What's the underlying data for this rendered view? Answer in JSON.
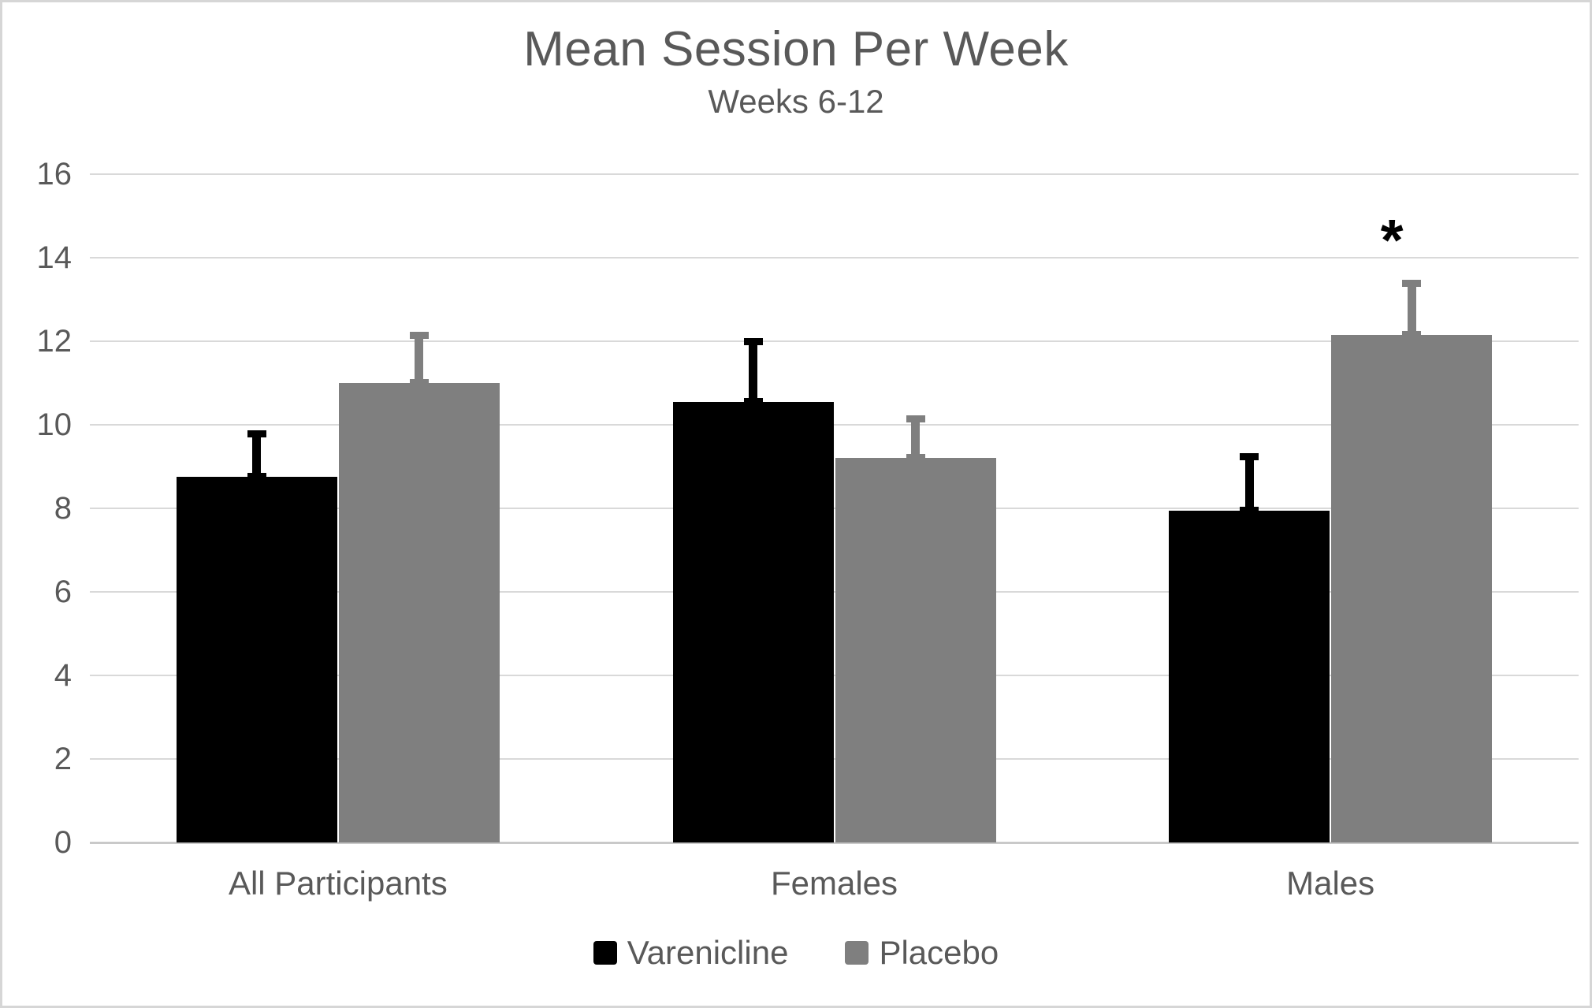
{
  "chart_data": {
    "type": "bar",
    "title": "Mean Session Per Week",
    "subtitle": "Weeks 6-12",
    "categories": [
      "All Participants",
      "Females",
      "Males"
    ],
    "series": [
      {
        "name": "Varenicline",
        "color": "#000000",
        "values": [
          8.75,
          10.55,
          7.95
        ],
        "error_plus": [
          1.05,
          1.45,
          1.3
        ]
      },
      {
        "name": "Placebo",
        "color": "#7f7f7f",
        "values": [
          11.0,
          9.2,
          12.15
        ],
        "error_plus": [
          1.15,
          0.95,
          1.25
        ]
      }
    ],
    "ylim": [
      0,
      16
    ],
    "ytick_interval": 2,
    "ytick_labels": [
      "0",
      "2",
      "4",
      "6",
      "8",
      "10",
      "12",
      "14",
      "16"
    ],
    "xlabel": "",
    "ylabel": "",
    "grid": true,
    "legend_position": "bottom",
    "annotations": [
      {
        "text": "*",
        "category": "Males",
        "series": "Placebo",
        "y": 14.7
      }
    ]
  },
  "colors": {
    "text": "#595959",
    "gridline": "#d9d9d9",
    "axis_line": "#c9c9c9",
    "varenicline": "#000000",
    "placebo": "#7f7f7f"
  }
}
